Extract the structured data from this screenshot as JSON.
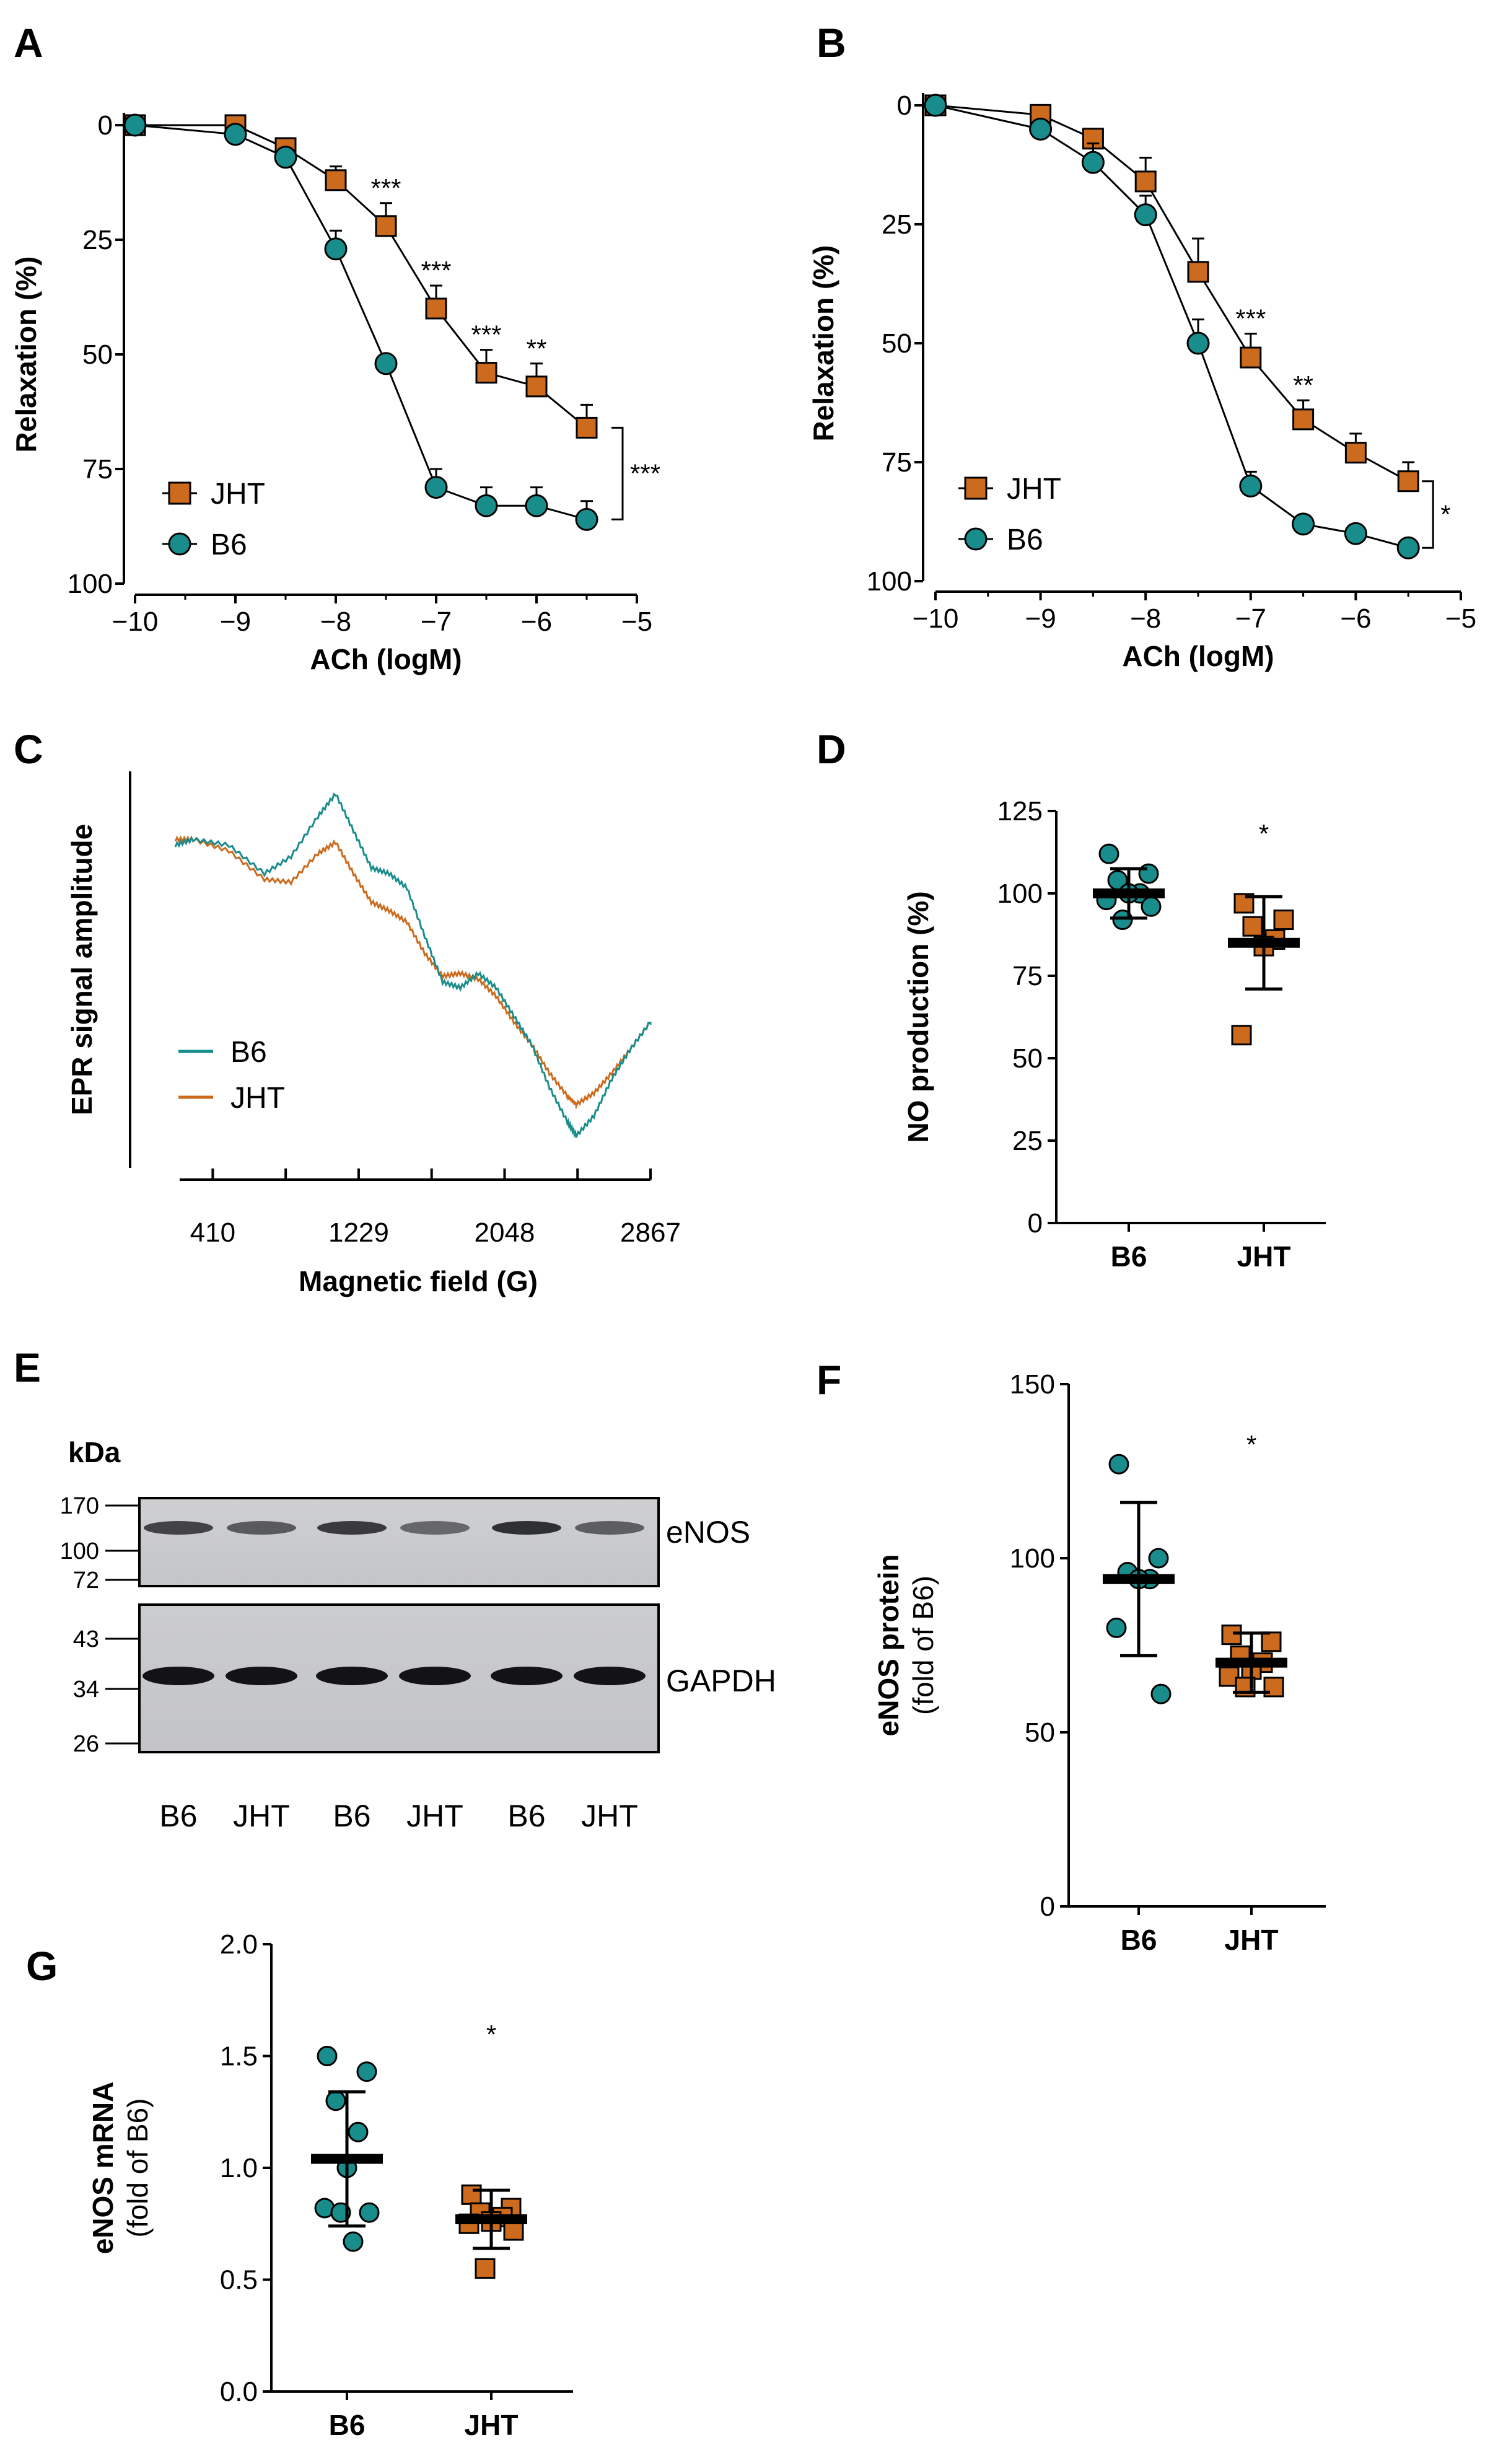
{
  "colors": {
    "jht": "#cc6b1e",
    "b6": "#198c8c",
    "axis": "#000000"
  },
  "chart_data": [
    {
      "panel": "A",
      "type": "line",
      "xlabel": "ACh (logM)",
      "ylabel": "Relaxation (%)",
      "xlim": [
        -10,
        -5
      ],
      "ylim": [
        0,
        100
      ],
      "y_inverted": true,
      "xticks": [
        "−10",
        "−9",
        "−8",
        "−7",
        "−6",
        "−5"
      ],
      "yticks": [
        "0",
        "25",
        "50",
        "75",
        "100"
      ],
      "x": [
        -10,
        -9,
        -8.5,
        -8,
        -7.5,
        -7,
        -6.5,
        -6,
        -5.5
      ],
      "series": [
        {
          "name": "JHT",
          "marker": "square",
          "values": [
            0,
            0,
            5,
            12,
            22,
            40,
            54,
            57,
            66
          ],
          "err": [
            0,
            0,
            2,
            3,
            5,
            5,
            5,
            5,
            5
          ]
        },
        {
          "name": "B6",
          "marker": "circle",
          "values": [
            0,
            2,
            7,
            27,
            52,
            79,
            83,
            83,
            86
          ],
          "err": [
            0,
            0,
            0,
            4,
            0,
            4,
            4,
            4,
            4
          ]
        }
      ],
      "annotations": [
        {
          "x": -7.5,
          "text": "***"
        },
        {
          "x": -7,
          "text": "***"
        },
        {
          "x": -6.5,
          "text": "***"
        },
        {
          "x": -6,
          "text": "**"
        }
      ],
      "bracket_text": "***",
      "legend": [
        "JHT",
        "B6"
      ],
      "legend_position": "bottom-left"
    },
    {
      "panel": "B",
      "type": "line",
      "xlabel": "ACh (logM)",
      "ylabel": "Relaxation (%)",
      "xlim": [
        -10,
        -5
      ],
      "ylim": [
        0,
        100
      ],
      "y_inverted": true,
      "xticks": [
        "−10",
        "−9",
        "−8",
        "−7",
        "−6",
        "−5"
      ],
      "yticks": [
        "0",
        "25",
        "50",
        "75",
        "100"
      ],
      "x": [
        -10,
        -9,
        -8.5,
        -8,
        -7.5,
        -7,
        -6.5,
        -6,
        -5.5
      ],
      "series": [
        {
          "name": "JHT",
          "marker": "square",
          "values": [
            0,
            2,
            7,
            16,
            35,
            53,
            66,
            73,
            79
          ],
          "err": [
            0,
            0,
            2,
            5,
            7,
            5,
            4,
            4,
            4
          ]
        },
        {
          "name": "B6",
          "marker": "circle",
          "values": [
            0,
            5,
            12,
            23,
            50,
            80,
            88,
            90,
            93
          ],
          "err": [
            0,
            0,
            4,
            4,
            5,
            3,
            0,
            0,
            0
          ]
        }
      ],
      "annotations": [
        {
          "x": -7,
          "text": "***"
        },
        {
          "x": -6.5,
          "text": "**"
        }
      ],
      "bracket_text": "*",
      "legend": [
        "JHT",
        "B6"
      ],
      "legend_position": "bottom-left"
    },
    {
      "panel": "C",
      "type": "line",
      "xlabel": "Magnetic field (G)",
      "ylabel": "EPR signal amplitude",
      "xticks": [
        "410",
        "1229",
        "2048",
        "2867"
      ],
      "xlim": [
        200,
        2867
      ],
      "legend": [
        "B6",
        "JHT"
      ],
      "legend_position": "left",
      "series": [
        {
          "name": "B6",
          "x": [
            200,
            300,
            500,
            700,
            850,
            1000,
            1100,
            1200,
            1300,
            1400,
            1500,
            1600,
            1700,
            1800,
            1900,
            2000,
            2100,
            2200,
            2300,
            2400,
            2450,
            2550,
            2650,
            2750,
            2867
          ],
          "values": [
            0.6,
            0.62,
            0.6,
            0.5,
            0.56,
            0.7,
            0.78,
            0.65,
            0.52,
            0.5,
            0.45,
            0.28,
            0.12,
            0.1,
            0.15,
            0.1,
            0.0,
            -0.1,
            -0.25,
            -0.37,
            -0.42,
            -0.35,
            -0.22,
            -0.12,
            -0.02
          ]
        },
        {
          "name": "JHT",
          "x": [
            200,
            300,
            500,
            700,
            850,
            1000,
            1100,
            1200,
            1300,
            1400,
            1500,
            1600,
            1700,
            1800,
            1900,
            2000,
            2100,
            2200,
            2300,
            2400,
            2450,
            2550,
            2650,
            2750,
            2867
          ],
          "values": [
            0.62,
            0.62,
            0.58,
            0.48,
            0.47,
            0.57,
            0.61,
            0.5,
            0.4,
            0.37,
            0.33,
            0.22,
            0.14,
            0.15,
            0.13,
            0.07,
            -0.02,
            -0.1,
            -0.2,
            -0.28,
            -0.31,
            -0.27,
            -0.2,
            -0.12,
            -0.02
          ]
        }
      ]
    },
    {
      "panel": "D",
      "type": "scatter",
      "ylabel": "NO production (%)",
      "categories": [
        "B6",
        "JHT"
      ],
      "ylim": [
        0,
        125
      ],
      "yticks": [
        "0",
        "25",
        "50",
        "75",
        "100",
        "125"
      ],
      "series": [
        {
          "name": "B6",
          "marker": "circle",
          "values": [
            112,
            106,
            104,
            100,
            100,
            98,
            96,
            92
          ],
          "mean": 100,
          "sd": 7.5
        },
        {
          "name": "JHT",
          "marker": "square",
          "values": [
            97,
            92,
            90,
            86,
            84,
            57
          ],
          "mean": 85,
          "sd": 14
        }
      ],
      "annotations": [
        {
          "category": "JHT",
          "text": "*"
        }
      ]
    },
    {
      "panel": "F",
      "type": "scatter",
      "ylabel": "eNOS protein",
      "ylabel2": "(fold of B6)",
      "categories": [
        "B6",
        "JHT"
      ],
      "ylim": [
        0,
        150
      ],
      "yticks": [
        "0",
        "50",
        "100",
        "150"
      ],
      "series": [
        {
          "name": "B6",
          "marker": "circle",
          "values": [
            127,
            100,
            96,
            94,
            94,
            80,
            61
          ],
          "mean": 94,
          "sd": 22
        },
        {
          "name": "JHT",
          "marker": "square",
          "values": [
            78,
            76,
            72,
            70,
            68,
            66,
            63,
            63
          ],
          "mean": 70,
          "sd": 8.5
        }
      ],
      "annotations": [
        {
          "category": "JHT",
          "text": "*"
        }
      ]
    },
    {
      "panel": "G",
      "type": "scatter",
      "ylabel": "eNOS mRNA",
      "ylabel2": "(fold of B6)",
      "categories": [
        "B6",
        "JHT"
      ],
      "ylim": [
        0,
        2
      ],
      "yticks": [
        "0.0",
        "0.5",
        "1.0",
        "1.5",
        "2.0"
      ],
      "series": [
        {
          "name": "B6",
          "marker": "circle",
          "values": [
            1.5,
            1.43,
            1.3,
            1.16,
            1.0,
            0.82,
            0.8,
            0.8,
            0.67
          ],
          "mean": 1.04,
          "sd": 0.3
        },
        {
          "name": "JHT",
          "marker": "square",
          "values": [
            0.88,
            0.82,
            0.8,
            0.78,
            0.76,
            0.75,
            0.72,
            0.55
          ],
          "mean": 0.77,
          "sd": 0.13
        }
      ],
      "annotations": [
        {
          "category": "JHT",
          "text": "*"
        }
      ]
    }
  ],
  "panel_labels": [
    "A",
    "B",
    "C",
    "D",
    "E",
    "F",
    "G"
  ],
  "western_blot": {
    "unit_label": "kDa",
    "top_markers": [
      "170",
      "100",
      "72"
    ],
    "bottom_markers": [
      "43",
      "34",
      "26"
    ],
    "top_band": "eNOS",
    "bottom_band": "GAPDH",
    "lanes": [
      "B6",
      "JHT",
      "B6",
      "JHT",
      "B6",
      "JHT"
    ]
  }
}
